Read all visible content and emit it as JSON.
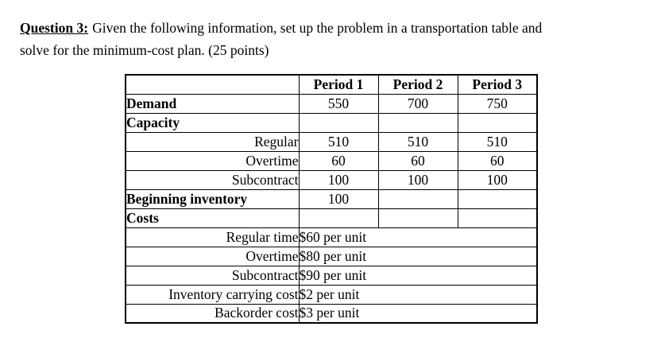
{
  "page": {
    "background_color": "#ffffff",
    "text_color": "#000000"
  },
  "question": {
    "label": "Question 3:",
    "line1_rest": "Given the following information, set up the problem in a transportation table and",
    "line2": "solve for the minimum-cost plan. (25 points)"
  },
  "table": {
    "column_headers": [
      "Period 1",
      "Period 2",
      "Period 3"
    ],
    "demand": {
      "label": "Demand",
      "values": [
        "550",
        "700",
        "750"
      ]
    },
    "capacity": {
      "label": "Capacity",
      "rows": [
        {
          "label": "Regular",
          "values": [
            "510",
            "510",
            "510"
          ]
        },
        {
          "label": "Overtime",
          "values": [
            "60",
            "60",
            "60"
          ]
        },
        {
          "label": "Subcontract",
          "values": [
            "100",
            "100",
            "100"
          ]
        }
      ]
    },
    "beginning_inventory": {
      "label": "Beginning inventory",
      "values": [
        "100",
        "",
        ""
      ]
    },
    "costs": {
      "label": "Costs",
      "rows": [
        {
          "label": "Regular time",
          "value": "$60 per unit"
        },
        {
          "label": "Overtime",
          "value": "$80 per unit"
        },
        {
          "label": "Subcontract",
          "value": "$90 per unit"
        },
        {
          "label": "Inventory carrying cost",
          "value": "$2 per unit"
        },
        {
          "label": "Backorder cost",
          "value": "$3 per unit"
        }
      ]
    }
  }
}
